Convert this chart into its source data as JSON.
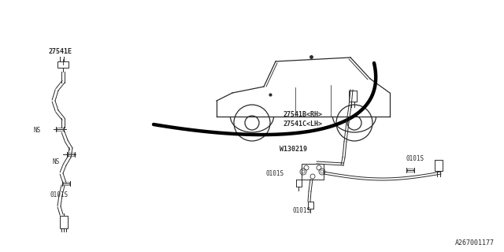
{
  "bg_color": "#ffffff",
  "line_color": "#2a2a2a",
  "text_color": "#2a2a2a",
  "diagram_number": "A267001177",
  "labels": {
    "part_e": "27541E",
    "part_b": "27541B<RH>",
    "part_c": "27541C<LH>",
    "part_w": "W130219",
    "ns1": "NS",
    "ns2": "NS",
    "s01_left": "0101S",
    "s01_right1": "0101S",
    "s01_right2": "0101S",
    "s01_right3": "0101S"
  }
}
